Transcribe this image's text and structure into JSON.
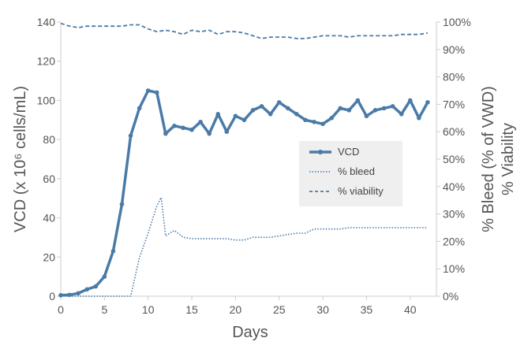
{
  "chart_data": {
    "type": "line",
    "title": "",
    "xlabel": "Days",
    "ylabel_left": "VCD (x 10⁶ cells/mL)",
    "ylabel_right_1": "% Bleed (% of VWD)",
    "ylabel_right_2": "% Viability",
    "x_ticks": [
      0,
      5,
      10,
      15,
      20,
      25,
      30,
      35,
      40
    ],
    "y_left_ticks": [
      0,
      20,
      40,
      60,
      80,
      100,
      120,
      140
    ],
    "y_right_ticks": [
      "0%",
      "10%",
      "20%",
      "30%",
      "40%",
      "50%",
      "60%",
      "70%",
      "80%",
      "90%",
      "100%"
    ],
    "xlim": [
      0,
      43
    ],
    "ylim_left": [
      0,
      140
    ],
    "ylim_right": [
      0,
      100
    ],
    "colors": {
      "series": "#4a7ba7",
      "axis": "#cccccc",
      "text": "#555555",
      "legend_bg": "#efefef"
    },
    "series": [
      {
        "name": "VCD",
        "axis": "left",
        "style": "solid-markers",
        "x": [
          0,
          1,
          2,
          3,
          4,
          5,
          6,
          7,
          8,
          9,
          10,
          11,
          12,
          13,
          14,
          15,
          16,
          17,
          18,
          19,
          20,
          21,
          22,
          23,
          24,
          25,
          26,
          27,
          28,
          29,
          30,
          31,
          32,
          33,
          34,
          35,
          36,
          37,
          38,
          39,
          40,
          41,
          42
        ],
        "values": [
          0.5,
          0.7,
          1.5,
          3.5,
          5,
          10,
          23,
          47,
          82,
          96,
          105,
          104,
          83,
          87,
          86,
          85,
          89,
          83,
          93,
          84,
          92,
          90,
          95,
          97,
          93,
          99,
          96,
          93,
          90,
          89,
          88,
          91,
          96,
          95,
          100,
          92,
          95,
          96,
          97,
          93,
          100,
          91,
          99
        ]
      },
      {
        "name": "% bleed",
        "axis": "right",
        "style": "dotted",
        "x": [
          0,
          4,
          8,
          9,
          10,
          11,
          11.5,
          12,
          13,
          14,
          15,
          16,
          17,
          18,
          19,
          20,
          21,
          22,
          23,
          24,
          25,
          26,
          27,
          28,
          29,
          30,
          31,
          32,
          33,
          34,
          35,
          36,
          37,
          38,
          39,
          40,
          41,
          42
        ],
        "values": [
          0,
          0,
          0,
          14,
          23,
          33,
          36,
          22,
          24,
          21.5,
          21,
          21,
          21,
          21,
          21,
          20.5,
          20.5,
          21.5,
          21.5,
          21.5,
          22,
          22.5,
          23,
          23,
          24.5,
          24.5,
          24.5,
          24.5,
          25,
          25,
          25,
          25,
          25,
          25,
          25,
          25,
          25,
          25
        ]
      },
      {
        "name": "% viability",
        "axis": "right",
        "style": "dashed",
        "x": [
          0,
          1,
          2,
          3,
          4,
          5,
          6,
          7,
          8,
          9,
          10,
          11,
          12,
          13,
          14,
          15,
          16,
          17,
          18,
          19,
          20,
          21,
          22,
          23,
          24,
          25,
          26,
          27,
          28,
          29,
          30,
          31,
          32,
          33,
          34,
          35,
          36,
          37,
          38,
          39,
          40,
          41,
          42
        ],
        "values": [
          99.5,
          98.5,
          98,
          98.5,
          98.5,
          98.5,
          98.5,
          98.5,
          99,
          99,
          97.5,
          96.5,
          97,
          96.5,
          95.5,
          97,
          96.5,
          97,
          95.5,
          96.5,
          96.5,
          96,
          95,
          94,
          94.5,
          94.5,
          94.5,
          94,
          94,
          94.5,
          95,
          95,
          95,
          94.5,
          95,
          95,
          95,
          95,
          95,
          95.5,
          95.5,
          95.5,
          96
        ]
      }
    ],
    "legend": {
      "placement": "center-right",
      "entries": [
        "VCD",
        "% bleed",
        "% viability"
      ]
    }
  }
}
